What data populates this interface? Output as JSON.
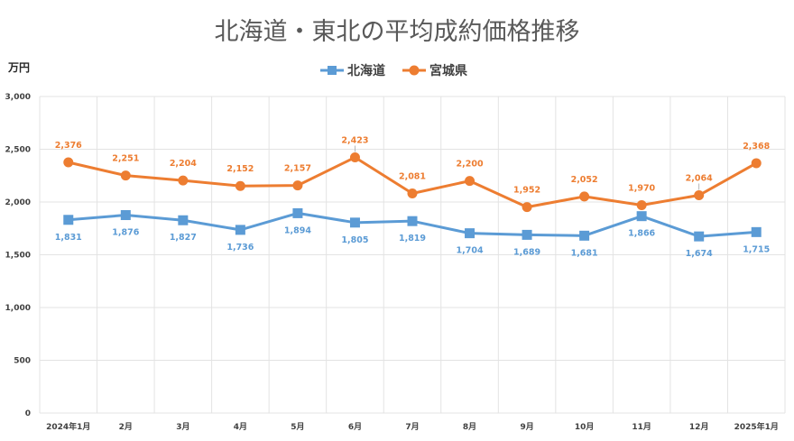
{
  "chart_data": {
    "type": "line",
    "title": "北海道・東北の平均成約価格推移",
    "ylabel": "万円",
    "xlabel": "",
    "ylim": [
      0,
      3000
    ],
    "y_ticks": [
      "0",
      "500",
      "1,000",
      "1,500",
      "2,000",
      "2,500",
      "3,000"
    ],
    "y_tick_values": [
      0,
      500,
      1000,
      1500,
      2000,
      2500,
      3000
    ],
    "grid": true,
    "legend_position": "top",
    "categories": [
      "2024年1月",
      "2月",
      "3月",
      "4月",
      "5月",
      "6月",
      "7月",
      "8月",
      "9月",
      "10月",
      "11月",
      "12月",
      "2025年1月"
    ],
    "series": [
      {
        "name": "北海道",
        "marker": "square",
        "color": "#5B9BD5",
        "values": [
          1831,
          1876,
          1827,
          1736,
          1894,
          1805,
          1819,
          1704,
          1689,
          1681,
          1866,
          1674,
          1715
        ],
        "labels": [
          "1,831",
          "1,876",
          "1,827",
          "1,736",
          "1,894",
          "1,805",
          "1,819",
          "1,704",
          "1,689",
          "1,681",
          "1,866",
          "1,674",
          "1,715"
        ],
        "label_position": "below"
      },
      {
        "name": "宮城県",
        "marker": "circle",
        "color": "#ED7D31",
        "values": [
          2376,
          2251,
          2204,
          2152,
          2157,
          2423,
          2081,
          2200,
          1952,
          2052,
          1970,
          2064,
          2368
        ],
        "labels": [
          "2,376",
          "2,251",
          "2,204",
          "2,152",
          "2,157",
          "2,423",
          "2,081",
          "2,200",
          "1,952",
          "2,052",
          "1,970",
          "2,064",
          "2,368"
        ],
        "label_position": "above"
      }
    ]
  }
}
